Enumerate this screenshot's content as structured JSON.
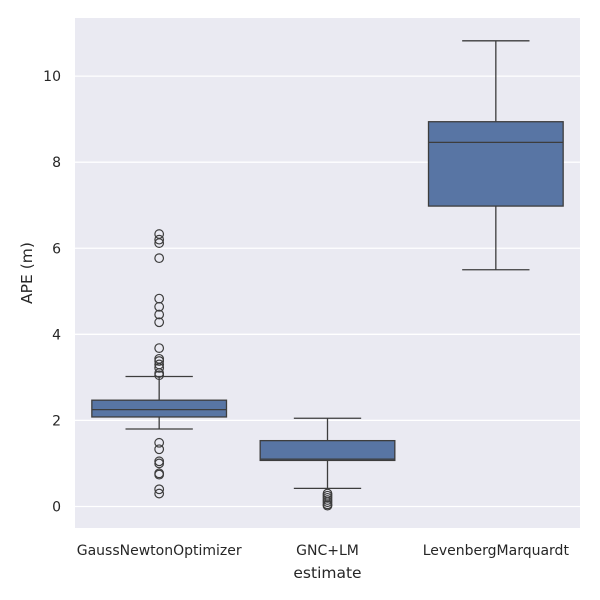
{
  "chart_data": {
    "type": "box",
    "title": "",
    "xlabel": "estimate",
    "ylabel": "APE (m)",
    "ylim": [
      -0.5,
      11.35
    ],
    "yticks": [
      0,
      2,
      4,
      6,
      8,
      10
    ],
    "grid": true,
    "colors": {
      "background": "#eaeaf2",
      "grid": "#ffffff",
      "box_fill": "#5875a4",
      "line": "#3d3d3d"
    },
    "categories": [
      "GaussNewtonOptimizer",
      "GNC+LM",
      "LevenbergMarquardt"
    ],
    "boxes": [
      {
        "category": "GaussNewtonOptimizer",
        "whisker_low": 1.8,
        "q1": 2.08,
        "median": 2.25,
        "q3": 2.47,
        "whisker_high": 3.02,
        "outliers": [
          6.33,
          6.2,
          6.12,
          5.77,
          4.83,
          4.64,
          4.46,
          4.28,
          3.68,
          3.43,
          3.38,
          3.3,
          3.22,
          3.1,
          3.05,
          1.48,
          1.33,
          1.05,
          1.0,
          0.77,
          0.74,
          0.4,
          0.3
        ]
      },
      {
        "category": "GNC+LM",
        "whisker_low": 0.42,
        "q1": 1.07,
        "median": 1.1,
        "q3": 1.53,
        "whisker_high": 2.05,
        "outliers": [
          0.3,
          0.25,
          0.2,
          0.15,
          0.1,
          0.05,
          0.02
        ]
      },
      {
        "category": "LevenbergMarquardt",
        "whisker_low": 5.5,
        "q1": 6.98,
        "median": 8.46,
        "q3": 8.94,
        "whisker_high": 10.82,
        "outliers": []
      }
    ]
  }
}
